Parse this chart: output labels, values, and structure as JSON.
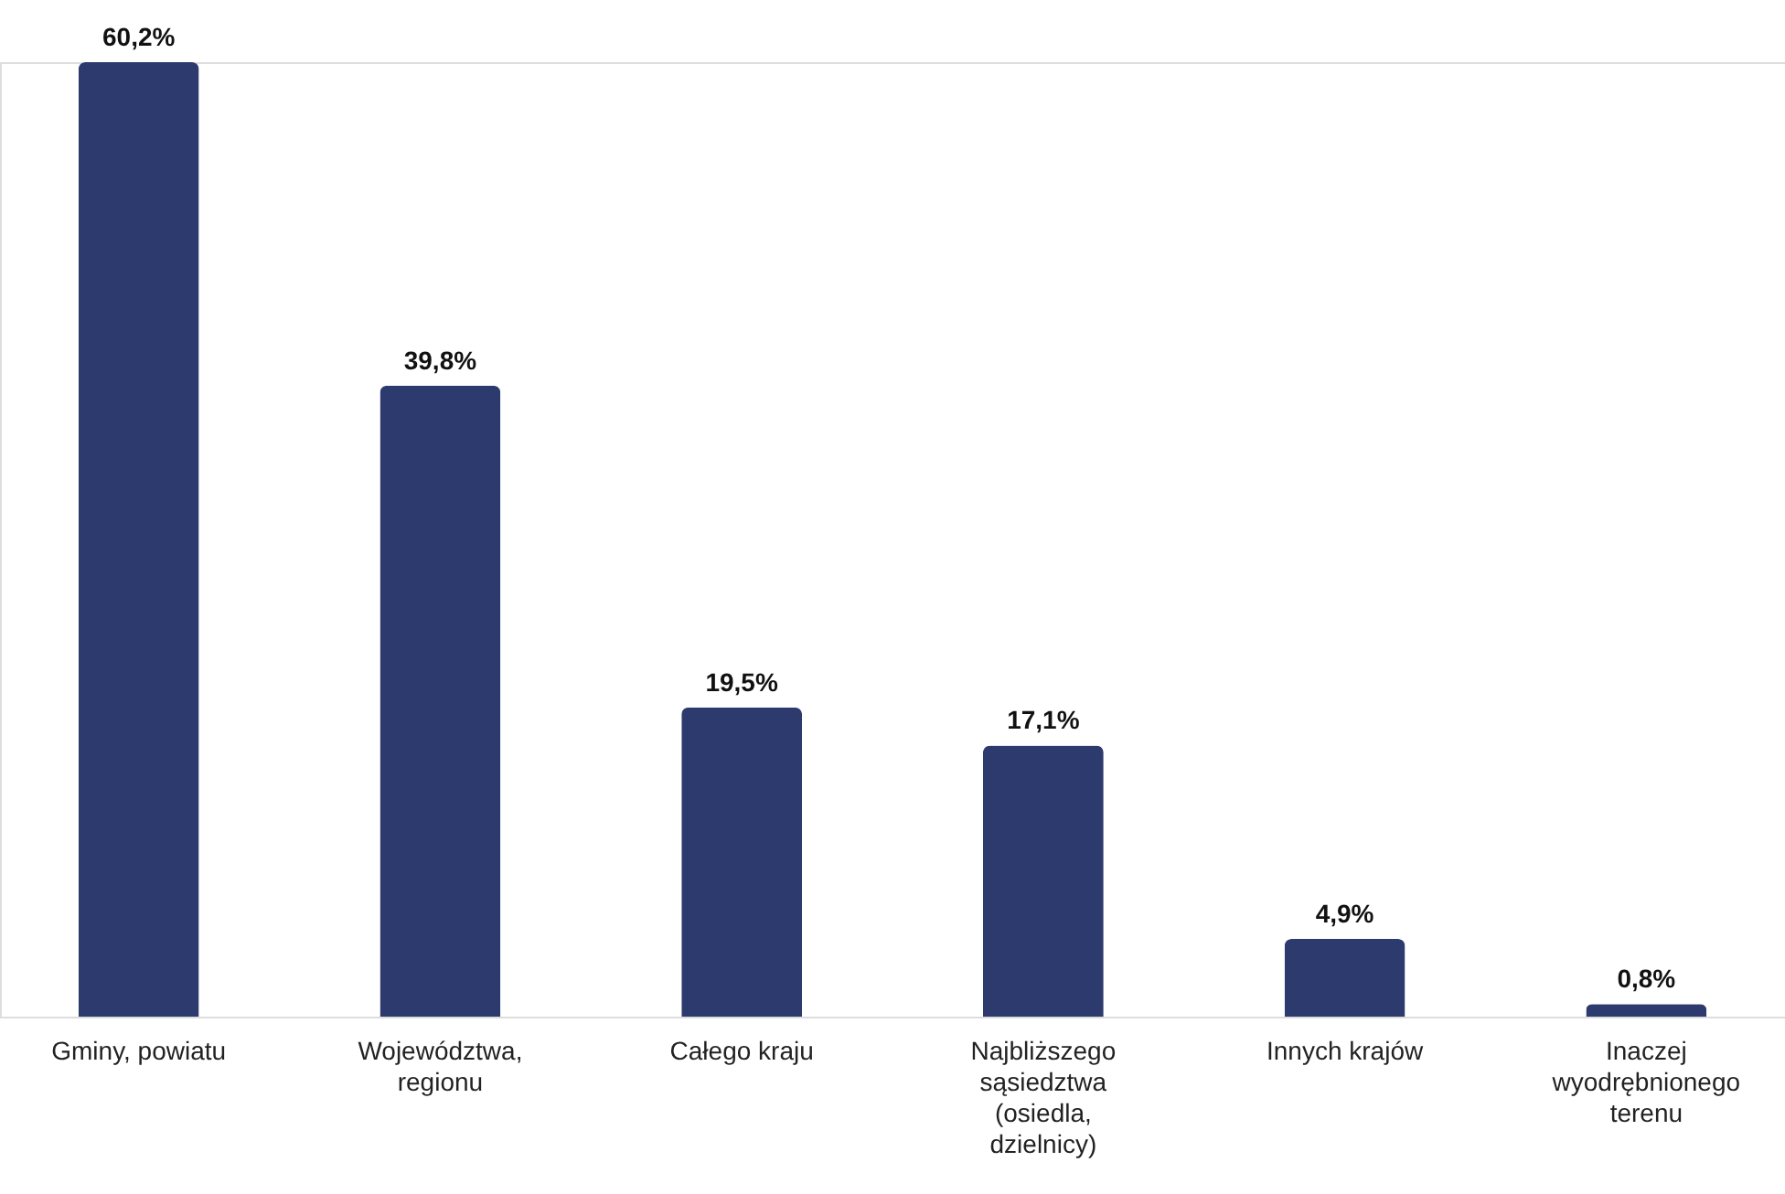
{
  "chart_data": {
    "type": "bar",
    "categories": [
      "Gminy, powiatu",
      "Województwa, regionu",
      "Całego kraju",
      "Najbliższego sąsiedztwa (osiedla, dzielnicy)",
      "Innych krajów",
      "Inaczej wyodrębnionego terenu"
    ],
    "values": [
      60.2,
      39.8,
      19.5,
      17.1,
      4.9,
      0.8
    ],
    "color": "#2d3a6e",
    "value_labels": [
      "60,2%",
      "39,8%",
      "19,5%",
      "17,1%",
      "4,9%",
      "0,8%"
    ]
  }
}
